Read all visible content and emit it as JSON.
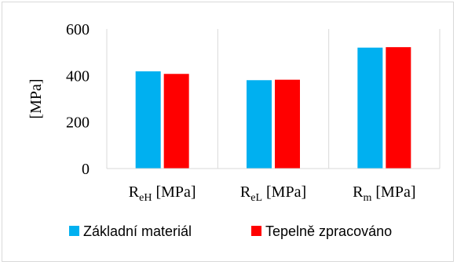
{
  "chart_data": {
    "type": "bar",
    "categories": [
      {
        "base": "R",
        "sub": "eH",
        "rest": " [MPa]"
      },
      {
        "base": "R",
        "sub": "eL",
        "rest": " [MPa]"
      },
      {
        "base": "R",
        "sub": "m",
        "rest": " [MPa]"
      }
    ],
    "series": [
      {
        "name": "Základní materiál",
        "color": "#00b0f0",
        "values": [
          418,
          380,
          520
        ]
      },
      {
        "name": "Tepelně zpracováno",
        "color": "#ff0000",
        "values": [
          407,
          382,
          522
        ]
      }
    ],
    "ylabel": "[MPa]",
    "ylim": [
      0,
      600
    ],
    "yticks": [
      0,
      200,
      400,
      600
    ],
    "grid": "vertical-category-separators",
    "legend_position": "bottom"
  }
}
